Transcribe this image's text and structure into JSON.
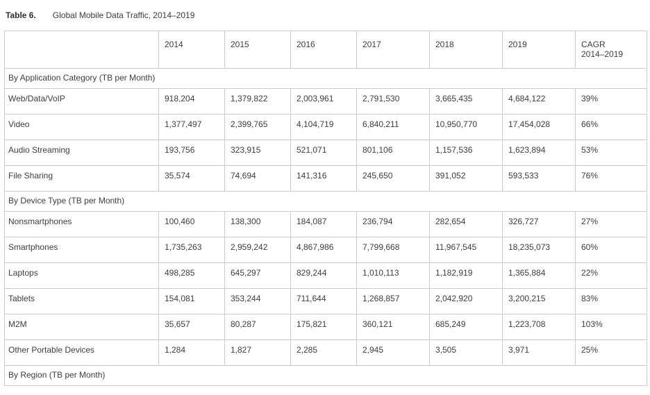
{
  "title": {
    "label": "Table 6.",
    "text": "Global Mobile Data Traffic, 2014–2019"
  },
  "table": {
    "header": {
      "years": [
        "2014",
        "2015",
        "2016",
        "2017",
        "2018",
        "2019"
      ],
      "cagr_line1": "CAGR",
      "cagr_line2": "2014–2019"
    },
    "sections": [
      {
        "label": "By Application Category (TB per Month)",
        "rows": [
          {
            "label": "Web/Data/VoIP",
            "values": [
              "918,204",
              "1,379,822",
              "2,003,961",
              "2,791,530",
              "3,665,435",
              "4,684,122"
            ],
            "cagr": "39%"
          },
          {
            "label": "Video",
            "values": [
              "1,377,497",
              "2,399,765",
              "4,104,719",
              "6,840,211",
              "10,950,770",
              "17,454,028"
            ],
            "cagr": "66%"
          },
          {
            "label": "Audio Streaming",
            "values": [
              "193,756",
              "323,915",
              "521,071",
              "801,106",
              "1,157,536",
              "1,623,894"
            ],
            "cagr": "53%"
          },
          {
            "label": "File Sharing",
            "values": [
              "35,574",
              "74,694",
              "141,316",
              "245,650",
              "391,052",
              "593,533"
            ],
            "cagr": "76%"
          }
        ]
      },
      {
        "label": "By Device Type (TB per Month)",
        "rows": [
          {
            "label": "Nonsmartphones",
            "values": [
              "100,460",
              "138,300",
              "184,087",
              "236,794",
              "282,654",
              "326,727"
            ],
            "cagr": "27%"
          },
          {
            "label": "Smartphones",
            "values": [
              "1,735,263",
              "2,959,242",
              "4,867,986",
              "7,799,668",
              "11,967,545",
              "18,235,073"
            ],
            "cagr": "60%"
          },
          {
            "label": "Laptops",
            "values": [
              "498,285",
              "645,297",
              "829,244",
              "1,010,113",
              "1,182,919",
              "1,365,884"
            ],
            "cagr": "22%"
          },
          {
            "label": "Tablets",
            "values": [
              "154,081",
              "353,244",
              "711,644",
              "1,268,857",
              "2,042,920",
              "3,200,215"
            ],
            "cagr": "83%"
          },
          {
            "label": "M2M",
            "values": [
              "35,657",
              "80,287",
              "175,821",
              "360,121",
              "685,249",
              "1,223,708"
            ],
            "cagr": "103%"
          },
          {
            "label": "Other Portable Devices",
            "values": [
              "1,284",
              "1,827",
              "2,285",
              "2,945",
              "3,505",
              "3,971"
            ],
            "cagr": "25%"
          }
        ]
      },
      {
        "label": "By Region (TB per Month)",
        "rows": []
      }
    ]
  },
  "colors": {
    "border": "#cbcbcb",
    "text": "#3d3d3d",
    "background": "#ffffff"
  },
  "chart_data": {
    "type": "table",
    "title": "Table 6. Global Mobile Data Traffic, 2014–2019",
    "unit": "TB per Month",
    "columns": [
      "2014",
      "2015",
      "2016",
      "2017",
      "2018",
      "2019",
      "CAGR 2014–2019"
    ],
    "sections": [
      {
        "name": "By Application Category (TB per Month)",
        "series": [
          {
            "name": "Web/Data/VoIP",
            "values": [
              918204,
              1379822,
              2003961,
              2791530,
              3665435,
              4684122
            ],
            "cagr_pct": 39
          },
          {
            "name": "Video",
            "values": [
              1377497,
              2399765,
              4104719,
              6840211,
              10950770,
              17454028
            ],
            "cagr_pct": 66
          },
          {
            "name": "Audio Streaming",
            "values": [
              193756,
              323915,
              521071,
              801106,
              1157536,
              1623894
            ],
            "cagr_pct": 53
          },
          {
            "name": "File Sharing",
            "values": [
              35574,
              74694,
              141316,
              245650,
              391052,
              593533
            ],
            "cagr_pct": 76
          }
        ]
      },
      {
        "name": "By Device Type (TB per Month)",
        "series": [
          {
            "name": "Nonsmartphones",
            "values": [
              100460,
              138300,
              184087,
              236794,
              282654,
              326727
            ],
            "cagr_pct": 27
          },
          {
            "name": "Smartphones",
            "values": [
              1735263,
              2959242,
              4867986,
              7799668,
              11967545,
              18235073
            ],
            "cagr_pct": 60
          },
          {
            "name": "Laptops",
            "values": [
              498285,
              645297,
              829244,
              1010113,
              1182919,
              1365884
            ],
            "cagr_pct": 22
          },
          {
            "name": "Tablets",
            "values": [
              154081,
              353244,
              711644,
              1268857,
              2042920,
              3200215
            ],
            "cagr_pct": 83
          },
          {
            "name": "M2M",
            "values": [
              35657,
              80287,
              175821,
              360121,
              685249,
              1223708
            ],
            "cagr_pct": 103
          },
          {
            "name": "Other Portable Devices",
            "values": [
              1284,
              1827,
              2285,
              2945,
              3505,
              3971
            ],
            "cagr_pct": 25
          }
        ]
      },
      {
        "name": "By Region (TB per Month)",
        "series": []
      }
    ]
  }
}
